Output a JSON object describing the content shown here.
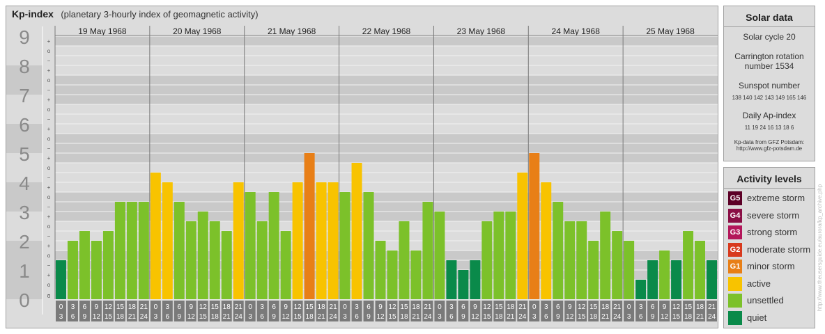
{
  "header": {
    "title": "Kp-index",
    "subtitle": "(planetary 3-hourly index of geomagnetic activity)"
  },
  "chart_data": {
    "type": "bar",
    "ylim": [
      0,
      9
    ],
    "y_ticks": [
      "0",
      "1",
      "2",
      "3",
      "4",
      "5",
      "6",
      "7",
      "8",
      "9"
    ],
    "minor_ticks": [
      "+",
      "o",
      "−"
    ],
    "days": [
      "19 May 1968",
      "20 May 1968",
      "21 May 1968",
      "22 May 1968",
      "23 May 1968",
      "24 May 1968",
      "25 May 1968"
    ],
    "slot_start": [
      "0",
      "3",
      "6",
      "9",
      "12",
      "15",
      "18",
      "21"
    ],
    "slot_end": [
      "3",
      "6",
      "9",
      "12",
      "15",
      "18",
      "21",
      "24"
    ],
    "values": [
      [
        1.333,
        2,
        2.333,
        2,
        2.333,
        3.333,
        3.333,
        3.333
      ],
      [
        4.333,
        4,
        3.333,
        2.667,
        3,
        2.667,
        2.333,
        4
      ],
      [
        3.667,
        2.667,
        3.667,
        2.333,
        4,
        5,
        4,
        4
      ],
      [
        3.667,
        4.667,
        3.667,
        2,
        1.667,
        2.667,
        1.667,
        3.333
      ],
      [
        3,
        1.333,
        1,
        1.333,
        2.667,
        3,
        3,
        4.333
      ],
      [
        5,
        4,
        3.333,
        2.667,
        2.667,
        2,
        3,
        2.333
      ],
      [
        2,
        0.667,
        1.333,
        1.667,
        1.333,
        2.333,
        2,
        1.333
      ]
    ],
    "colors": {
      "quiet": "#0a8a4a",
      "unsettled": "#7cc12a",
      "active": "#f8c300",
      "G1": "#e87f17",
      "G2": "#d83a1e",
      "G3": "#b3165a",
      "G4": "#8a0f45",
      "G5": "#5c0026"
    }
  },
  "solar": {
    "title": "Solar data",
    "cycle": "Solar cycle 20",
    "carrington_line1": "Carrington rotation",
    "carrington_line2": "number 1534",
    "sunspot_title": "Sunspot number",
    "sunspot_values": "138 140 142 143 149 165 146",
    "ap_title": "Daily Ap-index",
    "ap_values": "11  19  24  16  13  18  6",
    "source_line1": "Kp-data from GFZ Potsdam:",
    "source_line2": "http://www.gfz-potsdam.de"
  },
  "activity": {
    "title": "Activity levels",
    "levels": [
      {
        "badge": "G5",
        "label": "extreme storm",
        "color": "#5c0026"
      },
      {
        "badge": "G4",
        "label": "severe storm",
        "color": "#8a0f45"
      },
      {
        "badge": "G3",
        "label": "strong storm",
        "color": "#b3165a"
      },
      {
        "badge": "G2",
        "label": "moderate storm",
        "color": "#d83a1e"
      },
      {
        "badge": "G1",
        "label": "minor storm",
        "color": "#e87f17"
      },
      {
        "badge": "",
        "label": "active",
        "color": "#f8c300"
      },
      {
        "badge": "",
        "label": "unsettled",
        "color": "#7cc12a"
      },
      {
        "badge": "",
        "label": "quiet",
        "color": "#0a8a4a"
      }
    ]
  },
  "credit": "http://www.theusersguide.eu/aurora/kp_archive.php"
}
